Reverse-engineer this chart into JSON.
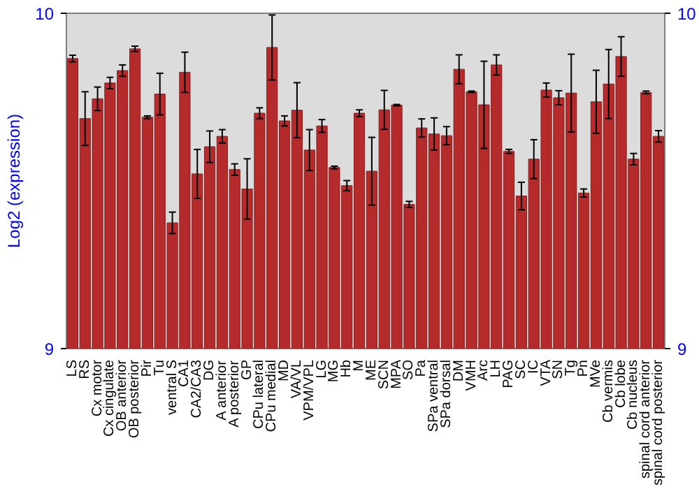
{
  "chart_data": {
    "type": "bar",
    "ylabel": "Log2 (expression)",
    "categories": [
      "LS",
      "RS",
      "Cx motor",
      "Cx cingulate",
      "OB anterior",
      "OB posterior",
      "Pir",
      "Tu",
      "ventral S",
      "CA1",
      "CA2/CA3",
      "DG",
      "A anterior",
      "A posterior",
      "GP",
      "CPu lateral",
      "CPu medial",
      "MD",
      "VA/VL",
      "VPM/VPL",
      "LG",
      "MG",
      "Hb",
      "M",
      "ME",
      "SCN",
      "MPA",
      "SO",
      "Pa",
      "SPa ventral",
      "SPa dorsal",
      "DM",
      "VMH",
      "Arc",
      "LH",
      "PAG",
      "SC",
      "IC",
      "VTA",
      "SN",
      "Tg",
      "Pn",
      "MVe",
      "Cb vermis",
      "Cb lobe",
      "Cb nucleus",
      "spinal cord anterior",
      "spinal cord posterior"
    ],
    "values": [
      9.865,
      9.686,
      9.745,
      9.792,
      9.829,
      9.894,
      9.69,
      9.759,
      9.375,
      9.824,
      9.521,
      9.602,
      9.633,
      9.534,
      9.476,
      9.702,
      9.898,
      9.679,
      9.711,
      9.592,
      9.664,
      9.54,
      9.486,
      9.702,
      9.529,
      9.712,
      9.726,
      9.43,
      9.658,
      9.64,
      9.635,
      9.833,
      9.766,
      9.727,
      9.846,
      9.588,
      9.455,
      9.565,
      9.771,
      9.748,
      9.762,
      9.464,
      9.736,
      9.789,
      9.871,
      9.565,
      9.764,
      9.633
    ],
    "errors": [
      0.01,
      0.08,
      0.035,
      0.017,
      0.017,
      0.008,
      0.004,
      0.062,
      0.032,
      0.06,
      0.073,
      0.047,
      0.02,
      0.017,
      0.09,
      0.016,
      0.097,
      0.015,
      0.082,
      0.061,
      0.019,
      0.004,
      0.015,
      0.01,
      0.101,
      0.058,
      0.002,
      0.009,
      0.027,
      0.048,
      0.027,
      0.043,
      0.002,
      0.13,
      0.03,
      0.006,
      0.041,
      0.058,
      0.021,
      0.021,
      0.116,
      0.012,
      0.094,
      0.103,
      0.059,
      0.017,
      0.004,
      0.017
    ],
    "color": "#b52a2a",
    "ylim": [
      9,
      10
    ],
    "yticks": [
      9,
      10
    ],
    "y2lim": [
      9,
      10
    ],
    "y2ticks": [
      9,
      10
    ],
    "grid": false
  }
}
